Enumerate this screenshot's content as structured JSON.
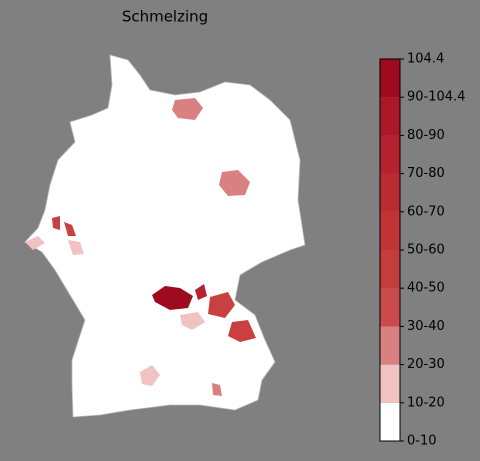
{
  "title": "Schmelzing",
  "legend": {
    "labels": [
      "0-10",
      "10-20",
      "20-30",
      "30-40",
      "40-50",
      "50-60",
      "60-70",
      "70-80",
      "80-90",
      "90-104.4",
      "104.4"
    ],
    "colors": [
      "#ffffff",
      "#f0c2c2",
      "#d98080",
      "#cb4a4a",
      "#c43c3c",
      "#c03434",
      "#bb2c32",
      "#b5222e",
      "#ad1828",
      "#9e0a1e"
    ]
  }
}
